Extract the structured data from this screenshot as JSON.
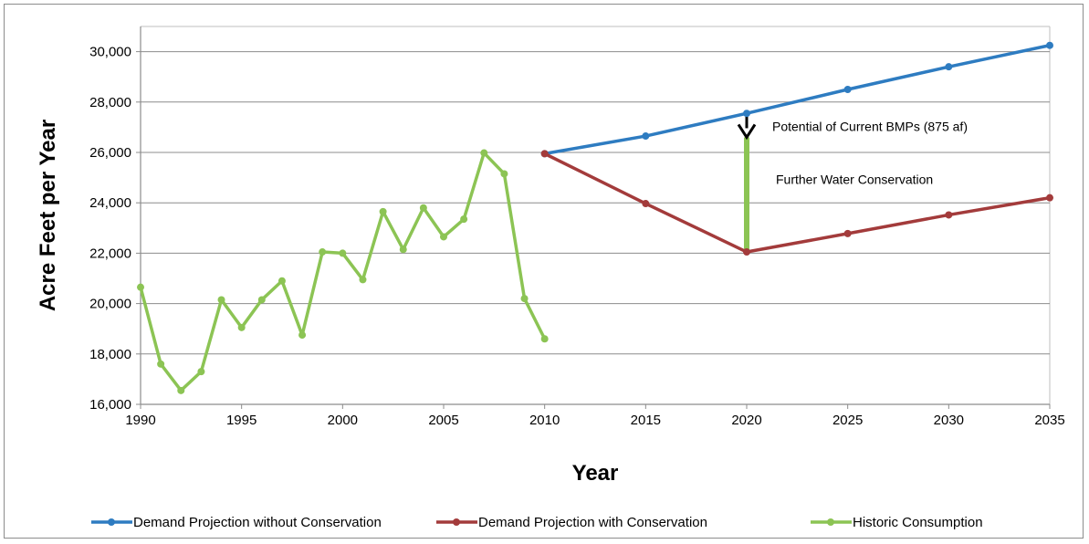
{
  "chart_data": {
    "type": "line",
    "xlabel": "Year",
    "ylabel": "Acre Feet per Year",
    "xlim": [
      1990,
      2035
    ],
    "ylim": [
      16000,
      31000
    ],
    "x_ticks": [
      1990,
      1995,
      2000,
      2005,
      2010,
      2015,
      2020,
      2025,
      2030,
      2035
    ],
    "x_tick_labels": [
      "1990",
      "1995",
      "2000",
      "2005",
      "2010",
      "2015",
      "2020",
      "2025",
      "2030",
      "2035"
    ],
    "y_ticks": [
      16000,
      18000,
      20000,
      22000,
      24000,
      26000,
      28000,
      30000
    ],
    "y_tick_labels": [
      "16,000",
      "18,000",
      "20,000",
      "22,000",
      "24,000",
      "26,000",
      "28,000",
      "30,000"
    ],
    "grid": "horizontal",
    "legend_position": "bottom",
    "series": [
      {
        "name": "Demand Projection without Conservation",
        "color": "#2e7cc1",
        "x": [
          2010,
          2015,
          2020,
          2025,
          2030,
          2035
        ],
        "y": [
          25950,
          26650,
          27550,
          28500,
          29400,
          30250
        ]
      },
      {
        "name": "Demand Projection with Conservation",
        "color": "#a33b3b",
        "x": [
          2010,
          2015,
          2020,
          2025,
          2030,
          2035
        ],
        "y": [
          25950,
          23970,
          22050,
          22780,
          23520,
          24200
        ]
      },
      {
        "name": "Historic Consumption",
        "color": "#8cc454",
        "x": [
          1990,
          1991,
          1992,
          1993,
          1994,
          1995,
          1996,
          1997,
          1998,
          1999,
          2000,
          2001,
          2002,
          2003,
          2004,
          2005,
          2006,
          2007,
          2008,
          2009,
          2010
        ],
        "y": [
          20650,
          17600,
          16550,
          17300,
          20150,
          19050,
          20150,
          20900,
          18750,
          22050,
          22000,
          20950,
          23650,
          22150,
          23800,
          22650,
          23350,
          25980,
          25150,
          20200,
          18600
        ]
      }
    ],
    "annotations": [
      {
        "text": "Potential of Current BMPs (875 af)",
        "x": 2020,
        "y_from": 27550,
        "y_to": 26600
      },
      {
        "text": "Further Water Conservation",
        "x": 2020,
        "y_from": 26600,
        "y_to": 22050
      }
    ]
  }
}
